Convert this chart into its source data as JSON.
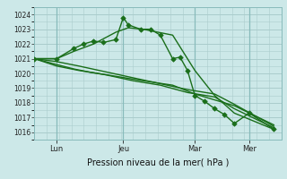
{
  "bg_color": "#cce8e8",
  "grid_color": "#aacccc",
  "line_color": "#1a6e1a",
  "xlabel": "Pression niveau de la mer( hPa )",
  "ylim": [
    1015.5,
    1024.5
  ],
  "yticks": [
    1016,
    1017,
    1018,
    1019,
    1020,
    1021,
    1022,
    1023,
    1024
  ],
  "xtick_labels": [
    "Lun",
    "Jeu",
    "Mar",
    "Mer"
  ],
  "xtick_positions": [
    0.09,
    0.36,
    0.65,
    0.87
  ],
  "vline_x": [
    0.09,
    0.36,
    0.65,
    0.87
  ],
  "series1_x": [
    0.0,
    0.09,
    0.16,
    0.2,
    0.24,
    0.28,
    0.33,
    0.36,
    0.38,
    0.43,
    0.47,
    0.51,
    0.56,
    0.59,
    0.62,
    0.65,
    0.69,
    0.73,
    0.77,
    0.81,
    0.87,
    0.97
  ],
  "series1_y": [
    1021.0,
    1021.0,
    1021.7,
    1022.0,
    1022.2,
    1022.1,
    1022.3,
    1023.8,
    1023.3,
    1023.0,
    1023.0,
    1022.6,
    1021.0,
    1021.1,
    1020.2,
    1018.5,
    1018.1,
    1017.6,
    1017.2,
    1016.6,
    1017.3,
    1016.2
  ],
  "series2_x": [
    0.0,
    0.09,
    0.16,
    0.24,
    0.33,
    0.38,
    0.44,
    0.56,
    0.65,
    0.73,
    0.81,
    0.97
  ],
  "series2_y": [
    1021.0,
    1021.0,
    1021.5,
    1022.0,
    1022.8,
    1023.1,
    1023.0,
    1022.6,
    1020.2,
    1018.5,
    1017.3,
    1016.2
  ],
  "series3_x": [
    0.0,
    0.09,
    0.16,
    0.22,
    0.33,
    0.44,
    0.56,
    0.65,
    0.73,
    0.81,
    0.97
  ],
  "series3_y": [
    1021.0,
    1020.6,
    1020.3,
    1020.1,
    1019.8,
    1019.5,
    1019.2,
    1018.6,
    1018.2,
    1017.8,
    1016.5
  ],
  "series4_x": [
    0.0,
    0.09,
    0.18,
    0.29,
    0.4,
    0.51,
    0.62,
    0.73,
    0.81,
    0.97
  ],
  "series4_y": [
    1021.0,
    1020.5,
    1020.2,
    1019.9,
    1019.5,
    1019.2,
    1018.7,
    1018.4,
    1017.6,
    1016.3
  ],
  "series5_x": [
    0.0,
    0.09,
    0.18,
    0.29,
    0.4,
    0.51,
    0.62,
    0.73,
    0.81,
    0.97
  ],
  "series5_y": [
    1021.0,
    1020.8,
    1020.5,
    1020.1,
    1019.7,
    1019.3,
    1018.9,
    1018.6,
    1017.9,
    1016.4
  ]
}
